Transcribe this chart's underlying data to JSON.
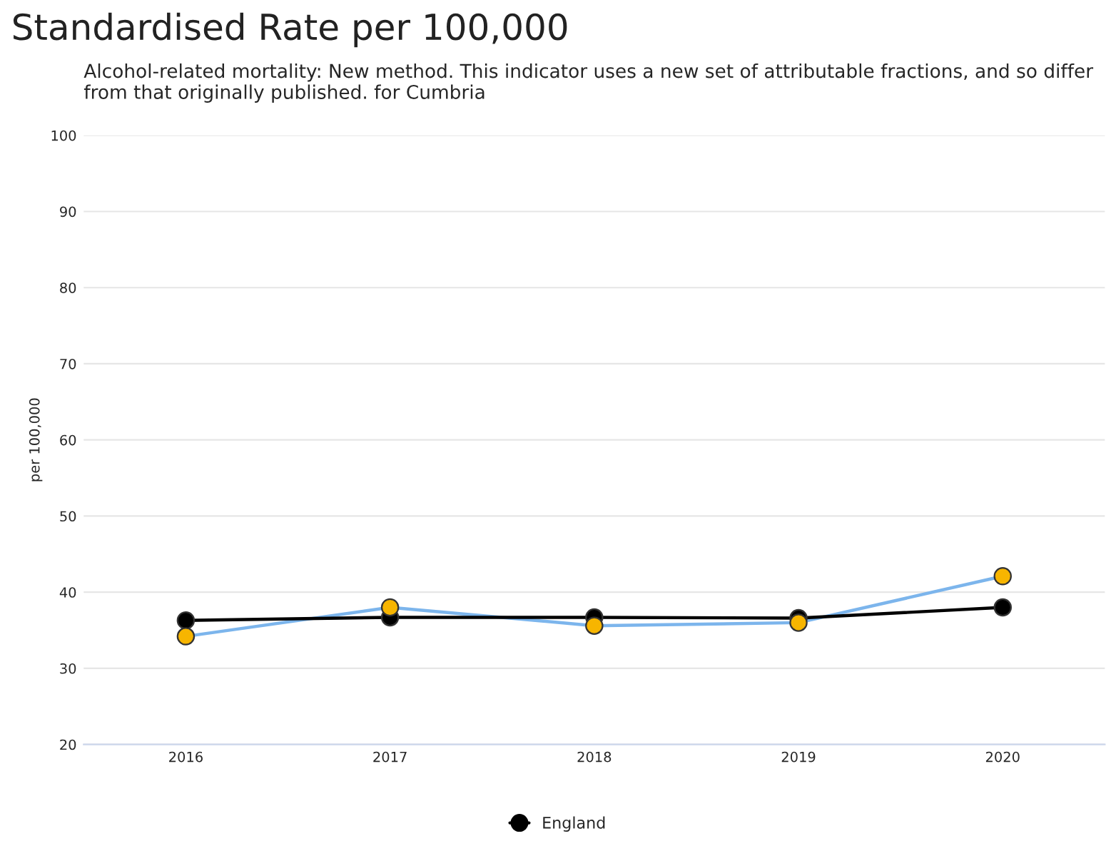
{
  "chart_data": {
    "type": "line",
    "title": "Standardised Rate per 100,000",
    "subtitle": "Alcohol-related mortality: New method. This indicator uses a new set of attributable fractions, and so differ from that originally published. for Cumbria",
    "ylabel": "per 100,000",
    "categories": [
      "2016",
      "2017",
      "2018",
      "2019",
      "2020"
    ],
    "ylim": [
      20,
      100
    ],
    "yticks": [
      20,
      30,
      40,
      50,
      60,
      70,
      80,
      90,
      100
    ],
    "grid": "y",
    "legend": "bottom",
    "marker": "circle",
    "series": [
      {
        "color": "#7cb5ec",
        "colors": [
          "#f7b500",
          "#f7b500",
          "#f7b500",
          "#f7b500",
          "#f7b500"
        ],
        "values": [
          34.2,
          38.0,
          35.6,
          36.0,
          42.1
        ]
      },
      {
        "name": "England",
        "color": "#000000",
        "values": [
          36.3,
          36.7,
          36.7,
          36.6,
          38.0
        ]
      }
    ]
  }
}
